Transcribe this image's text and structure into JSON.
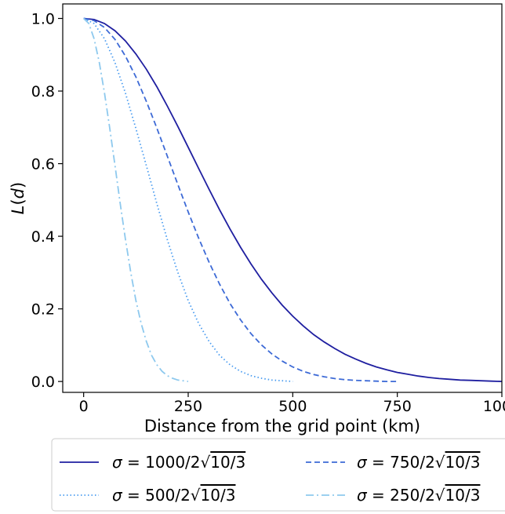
{
  "chart_data": {
    "type": "line",
    "xlabel": "Distance from the grid point (km)",
    "ylabel": "L(d)",
    "xlim": [
      -50,
      1000
    ],
    "ylim": [
      -0.03,
      1.04
    ],
    "x_ticks": [
      0,
      250,
      500,
      750,
      1000
    ],
    "y_ticks": [
      0.0,
      0.2,
      0.4,
      0.6,
      0.8,
      1.0
    ],
    "x_tick_labels": [
      "0",
      "250",
      "500",
      "750",
      "1000"
    ],
    "y_tick_labels": [
      "0.0",
      "0.2",
      "0.4",
      "0.6",
      "0.8",
      "1.0"
    ],
    "legend": {
      "placement": "below",
      "columns": 2
    },
    "series": [
      {
        "name": "σ = 1000/2√10/3",
        "label_prefix": "σ = 1000/2",
        "label_radicand": "10/3",
        "color": "#1f1fa0",
        "style": "solid",
        "x": [
          0,
          25,
          50,
          75,
          100,
          125,
          150,
          175,
          200,
          225,
          250,
          275,
          300,
          325,
          350,
          375,
          400,
          425,
          450,
          475,
          500,
          525,
          550,
          575,
          600,
          625,
          650,
          675,
          700,
          725,
          750,
          775,
          800,
          825,
          850,
          875,
          900,
          925,
          950,
          975,
          1000
        ],
        "y": [
          1.0,
          0.997,
          0.986,
          0.966,
          0.938,
          0.902,
          0.86,
          0.812,
          0.759,
          0.703,
          0.645,
          0.587,
          0.529,
          0.473,
          0.42,
          0.37,
          0.324,
          0.282,
          0.244,
          0.21,
          0.18,
          0.153,
          0.129,
          0.109,
          0.091,
          0.075,
          0.062,
          0.05,
          0.04,
          0.032,
          0.025,
          0.02,
          0.015,
          0.011,
          0.008,
          0.006,
          0.004,
          0.003,
          0.002,
          0.001,
          0.0
        ]
      },
      {
        "name": "σ = 750/2√10/3",
        "label_prefix": "σ = 750/2",
        "label_radicand": "10/3",
        "color": "#3d6ad6",
        "style": "dashed",
        "x": [
          0,
          25,
          50,
          75,
          100,
          125,
          150,
          175,
          200,
          225,
          250,
          275,
          300,
          325,
          350,
          375,
          400,
          425,
          450,
          475,
          500,
          525,
          550,
          575,
          600,
          625,
          650,
          675,
          700,
          725,
          750
        ],
        "y": [
          1.0,
          0.994,
          0.975,
          0.942,
          0.896,
          0.839,
          0.771,
          0.698,
          0.621,
          0.543,
          0.467,
          0.395,
          0.328,
          0.268,
          0.215,
          0.17,
          0.132,
          0.101,
          0.076,
          0.056,
          0.04,
          0.028,
          0.019,
          0.013,
          0.008,
          0.005,
          0.003,
          0.002,
          0.001,
          0.0,
          0.0
        ]
      },
      {
        "name": "σ = 500/2√10/3",
        "label_prefix": "σ = 500/2",
        "label_radicand": "10/3",
        "color": "#4a9cf0",
        "style": "dotted",
        "x": [
          0,
          25,
          50,
          75,
          100,
          125,
          150,
          175,
          200,
          225,
          250,
          275,
          300,
          325,
          350,
          375,
          400,
          425,
          450,
          475,
          500
        ],
        "y": [
          1.0,
          0.986,
          0.944,
          0.878,
          0.794,
          0.697,
          0.594,
          0.49,
          0.391,
          0.301,
          0.223,
          0.16,
          0.11,
          0.072,
          0.046,
          0.028,
          0.016,
          0.009,
          0.004,
          0.002,
          0.0
        ]
      },
      {
        "name": "σ = 250/2√10/3",
        "label_prefix": "σ = 250/2",
        "label_radicand": "10/3",
        "color": "#8ec9ee",
        "style": "dashdot",
        "x": [
          0,
          12.5,
          25,
          37.5,
          50,
          62.5,
          75,
          87.5,
          100,
          112.5,
          125,
          137.5,
          150,
          162.5,
          175,
          187.5,
          200,
          212.5,
          225,
          237.5,
          250
        ],
        "y": [
          1.0,
          0.986,
          0.944,
          0.878,
          0.794,
          0.697,
          0.594,
          0.49,
          0.391,
          0.301,
          0.223,
          0.16,
          0.11,
          0.072,
          0.046,
          0.028,
          0.016,
          0.009,
          0.004,
          0.002,
          0.0
        ]
      }
    ]
  }
}
